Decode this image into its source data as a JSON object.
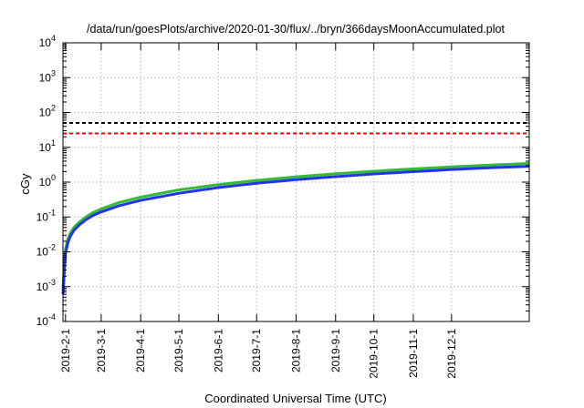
{
  "chart_data": {
    "type": "line",
    "title": "/data/run/goesPlots/archive/2020-01-30/flux/../bryn/366daysMoonAccumulated.plot",
    "xlabel": "Coordinated Universal Time (UTC)",
    "ylabel": "cGy",
    "yscale": "log",
    "ylim": [
      0.0001,
      10000
    ],
    "xlim": [
      "2019-01-30",
      "2020-01-31"
    ],
    "grid": true,
    "y_ticks": [
      {
        "value": 0.0001,
        "base": "10",
        "exp": "-4"
      },
      {
        "value": 0.001,
        "base": "10",
        "exp": "-3"
      },
      {
        "value": 0.01,
        "base": "10",
        "exp": "-2"
      },
      {
        "value": 0.1,
        "base": "10",
        "exp": "-1"
      },
      {
        "value": 1,
        "base": "10",
        "exp": "0"
      },
      {
        "value": 10,
        "base": "10",
        "exp": "1"
      },
      {
        "value": 100,
        "base": "10",
        "exp": "2"
      },
      {
        "value": 1000,
        "base": "10",
        "exp": "3"
      },
      {
        "value": 10000,
        "base": "10",
        "exp": "4"
      }
    ],
    "x_ticks": [
      {
        "date": "2019-02-01",
        "label": "2019-2-1"
      },
      {
        "date": "2019-03-01",
        "label": "2019-3-1"
      },
      {
        "date": "2019-04-01",
        "label": "2019-4-1"
      },
      {
        "date": "2019-05-01",
        "label": "2019-5-1"
      },
      {
        "date": "2019-06-01",
        "label": "2019-6-1"
      },
      {
        "date": "2019-07-01",
        "label": "2019-7-1"
      },
      {
        "date": "2019-08-01",
        "label": "2019-8-1"
      },
      {
        "date": "2019-09-01",
        "label": "2019-9-1"
      },
      {
        "date": "2019-10-01",
        "label": "2019-10-1"
      },
      {
        "date": "2019-11-01",
        "label": "2019-11-1"
      },
      {
        "date": "2019-12-01",
        "label": "2019-12-1"
      }
    ],
    "reference_lines": [
      {
        "value": 50,
        "color": "#000000",
        "style": "dashed"
      },
      {
        "value": 25,
        "color": "#ff0000",
        "style": "dashed"
      }
    ],
    "series": [
      {
        "color": "#33bb33",
        "x": [
          "2019-01-30",
          "2019-01-31",
          "2019-02-01",
          "2019-02-03",
          "2019-02-05",
          "2019-02-08",
          "2019-02-12",
          "2019-02-17",
          "2019-02-22",
          "2019-03-01",
          "2019-03-15",
          "2019-04-01",
          "2019-05-01",
          "2019-06-01",
          "2019-07-01",
          "2019-08-01",
          "2019-09-01",
          "2019-10-01",
          "2019-11-01",
          "2019-12-01",
          "2020-01-01",
          "2020-01-31"
        ],
        "y": [
          0.0009,
          0.004,
          0.012,
          0.024,
          0.036,
          0.052,
          0.072,
          0.1,
          0.13,
          0.17,
          0.26,
          0.37,
          0.6,
          0.85,
          1.12,
          1.42,
          1.74,
          2.06,
          2.4,
          2.74,
          3.1,
          3.45
        ]
      },
      {
        "color": "#2233ee",
        "x": [
          "2019-01-30",
          "2019-01-31",
          "2019-02-01",
          "2019-02-03",
          "2019-02-05",
          "2019-02-08",
          "2019-02-12",
          "2019-02-17",
          "2019-02-22",
          "2019-03-01",
          "2019-03-15",
          "2019-04-01",
          "2019-05-01",
          "2019-06-01",
          "2019-07-01",
          "2019-08-01",
          "2019-09-01",
          "2019-10-01",
          "2019-11-01",
          "2019-12-01",
          "2020-01-01",
          "2020-01-31"
        ],
        "y": [
          0.0006,
          0.0025,
          0.009,
          0.019,
          0.029,
          0.043,
          0.06,
          0.083,
          0.108,
          0.14,
          0.21,
          0.3,
          0.48,
          0.7,
          0.93,
          1.18,
          1.44,
          1.72,
          2.0,
          2.3,
          2.6,
          2.85
        ]
      }
    ]
  }
}
